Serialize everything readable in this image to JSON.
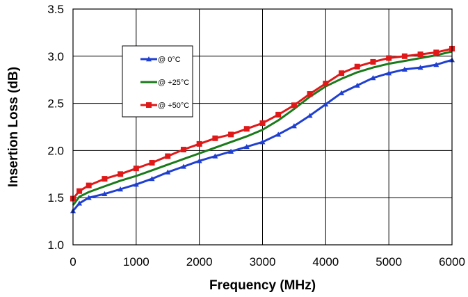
{
  "chart_data": {
    "type": "line",
    "title": "",
    "xlabel": "Frequency (MHz)",
    "ylabel": "Insertion Loss (dB)",
    "xlim": [
      0,
      6000
    ],
    "ylim": [
      1.0,
      3.5
    ],
    "x_ticks": [
      0,
      1000,
      2000,
      3000,
      4000,
      5000,
      6000
    ],
    "y_ticks": [
      "1.0",
      "1.5",
      "2.0",
      "2.5",
      "3.0",
      "3.5"
    ],
    "grid": true,
    "legend_position": "upper-left",
    "series": [
      {
        "name": "@ 0°C",
        "color": "#1f3fd0",
        "marker": "triangle",
        "x": [
          0,
          100,
          250,
          500,
          750,
          1000,
          1250,
          1500,
          1750,
          2000,
          2250,
          2500,
          2750,
          3000,
          3250,
          3500,
          3750,
          4000,
          4250,
          4500,
          4750,
          5000,
          5250,
          5500,
          5750,
          6000
        ],
        "y": [
          1.36,
          1.44,
          1.5,
          1.54,
          1.59,
          1.64,
          1.7,
          1.77,
          1.83,
          1.89,
          1.94,
          1.99,
          2.04,
          2.09,
          2.17,
          2.26,
          2.37,
          2.49,
          2.61,
          2.69,
          2.77,
          2.82,
          2.86,
          2.88,
          2.91,
          2.96
        ]
      },
      {
        "name": "@ +25°C",
        "color": "#1a7a1a",
        "marker": "none",
        "x": [
          0,
          100,
          250,
          500,
          750,
          1000,
          1250,
          1500,
          1750,
          2000,
          2250,
          2500,
          2750,
          3000,
          3250,
          3500,
          3750,
          4000,
          4250,
          4500,
          4750,
          5000,
          5250,
          5500,
          5750,
          6000
        ],
        "y": [
          1.42,
          1.51,
          1.56,
          1.62,
          1.68,
          1.73,
          1.79,
          1.85,
          1.91,
          1.97,
          2.03,
          2.09,
          2.15,
          2.22,
          2.32,
          2.44,
          2.57,
          2.68,
          2.76,
          2.83,
          2.88,
          2.92,
          2.95,
          2.98,
          3.01,
          3.05
        ]
      },
      {
        "name": "@ +50°C",
        "color": "#e01818",
        "marker": "square",
        "x": [
          0,
          100,
          250,
          500,
          750,
          1000,
          1250,
          1500,
          1750,
          2000,
          2250,
          2500,
          2750,
          3000,
          3250,
          3500,
          3750,
          4000,
          4250,
          4500,
          4750,
          5000,
          5250,
          5500,
          5750,
          6000
        ],
        "y": [
          1.49,
          1.57,
          1.63,
          1.7,
          1.75,
          1.81,
          1.87,
          1.94,
          2.01,
          2.07,
          2.13,
          2.17,
          2.23,
          2.29,
          2.38,
          2.48,
          2.6,
          2.71,
          2.82,
          2.89,
          2.94,
          2.98,
          3.0,
          3.02,
          3.04,
          3.08
        ]
      }
    ]
  }
}
